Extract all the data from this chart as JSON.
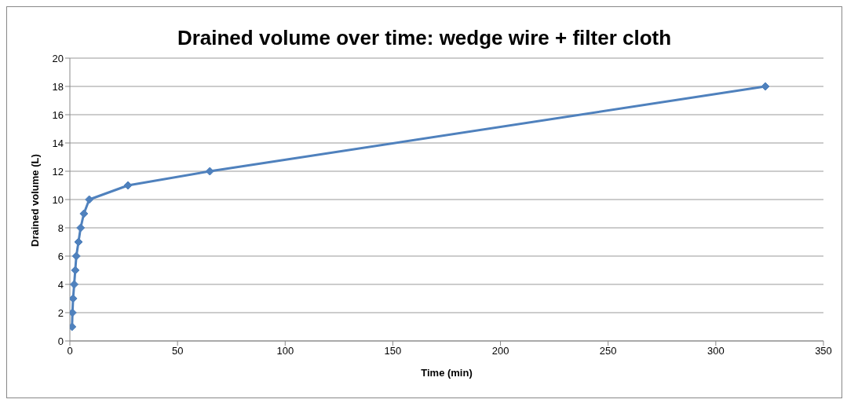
{
  "chart_data": {
    "type": "line",
    "title": "Drained volume over time: wedge wire + filter cloth",
    "xlabel": "Time (min)",
    "ylabel": "Drained volume (L)",
    "x": [
      1,
      1.2,
      1.5,
      2,
      2.5,
      3,
      4,
      5,
      6.5,
      9,
      27,
      65,
      323
    ],
    "series": [
      {
        "color": "#4f81bd",
        "values": [
          1,
          2,
          3,
          4,
          5,
          6,
          7,
          8,
          9,
          10,
          11,
          12,
          18
        ]
      }
    ],
    "xlim": [
      0,
      350
    ],
    "xticks": [
      0,
      50,
      100,
      150,
      200,
      250,
      300,
      350
    ],
    "ylim": [
      0,
      20
    ],
    "yticks": [
      0,
      2,
      4,
      6,
      8,
      10,
      12,
      14,
      16,
      18,
      20
    ],
    "grid": "y",
    "marker": "diamond",
    "legend": false
  }
}
